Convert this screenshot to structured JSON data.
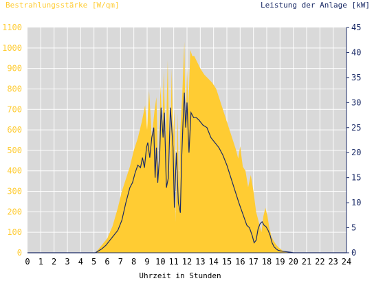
{
  "chart_data": {
    "type": "area",
    "left_axis_label": "Bestrahlungsstärke [W/qm]",
    "right_axis_label": "Leistung der Anlage [kW]",
    "xlabel": "Uhrzeit in Stunden",
    "xlim": [
      0,
      24
    ],
    "ylim_left": [
      0,
      1100
    ],
    "ylim_right": [
      0,
      45
    ],
    "x_ticks": [
      "0",
      "1",
      "2",
      "3",
      "4",
      "5",
      "6",
      "7",
      "8",
      "9",
      "10",
      "11",
      "12",
      "13",
      "14",
      "15",
      "16",
      "17",
      "18",
      "19",
      "20",
      "21",
      "22",
      "23",
      "24"
    ],
    "y_left_ticks": [
      "0",
      "100",
      "200",
      "300",
      "400",
      "500",
      "600",
      "700",
      "800",
      "900",
      "1000",
      "1100"
    ],
    "y_right_ticks": [
      "0",
      "5",
      "10",
      "15",
      "20",
      "25",
      "30",
      "35",
      "40",
      "45"
    ],
    "grid": true,
    "colors": {
      "background": "#d9d9d9",
      "grid": "#ffffff",
      "irradiance_fill": "#ffcc33",
      "power_line": "#1a2a66",
      "left_axis_text": "#ffcc33",
      "right_axis_text": "#1a2a66",
      "axis_text": "#000000"
    },
    "series": [
      {
        "name": "Bestrahlungsstärke [W/qm]",
        "axis": "left",
        "x": [
          0,
          5.1,
          5.5,
          6.0,
          6.4,
          6.8,
          7.1,
          7.4,
          7.7,
          8.0,
          8.3,
          8.6,
          8.85,
          9.0,
          9.15,
          9.35,
          9.55,
          9.7,
          9.85,
          10.0,
          10.15,
          10.25,
          10.4,
          10.55,
          10.7,
          10.85,
          10.95,
          11.05,
          11.15,
          11.3,
          11.4,
          11.5,
          11.65,
          11.8,
          11.9,
          12.0,
          12.1,
          12.25,
          12.4,
          12.55,
          12.7,
          12.85,
          13.0,
          13.3,
          13.6,
          13.9,
          14.2,
          14.5,
          14.8,
          15.1,
          15.4,
          15.7,
          15.85,
          16.0,
          16.2,
          16.4,
          16.6,
          16.8,
          17.0,
          17.2,
          17.4,
          17.6,
          17.75,
          17.9,
          18.05,
          18.2,
          18.35,
          18.5,
          18.7,
          18.9,
          19.2,
          19.5,
          19.8,
          20.0,
          20.3,
          24
        ],
        "y": [
          0,
          0,
          30,
          70,
          130,
          220,
          300,
          360,
          420,
          500,
          560,
          640,
          720,
          600,
          790,
          560,
          690,
          760,
          330,
          820,
          600,
          890,
          500,
          940,
          360,
          900,
          550,
          700,
          150,
          680,
          240,
          600,
          780,
          1030,
          550,
          900,
          700,
          990,
          960,
          960,
          940,
          920,
          900,
          870,
          850,
          830,
          800,
          740,
          680,
          620,
          560,
          500,
          460,
          520,
          420,
          400,
          320,
          380,
          300,
          200,
          150,
          100,
          180,
          220,
          180,
          120,
          80,
          60,
          40,
          25,
          10,
          5,
          2,
          0,
          0,
          0
        ]
      },
      {
        "name": "Leistung der Anlage [kW]",
        "axis": "right",
        "x": [
          0,
          5.1,
          5.3,
          5.6,
          5.9,
          6.2,
          6.5,
          6.8,
          7.1,
          7.4,
          7.7,
          7.9,
          8.1,
          8.3,
          8.5,
          8.65,
          8.8,
          8.95,
          9.05,
          9.2,
          9.35,
          9.5,
          9.6,
          9.7,
          9.8,
          9.95,
          10.05,
          10.2,
          10.3,
          10.45,
          10.6,
          10.75,
          10.85,
          10.95,
          11.05,
          11.2,
          11.35,
          11.5,
          11.6,
          11.7,
          11.8,
          11.9,
          12.0,
          12.15,
          12.3,
          12.5,
          12.7,
          12.9,
          13.2,
          13.5,
          13.8,
          14.1,
          14.4,
          14.7,
          15.0,
          15.3,
          15.6,
          15.9,
          16.1,
          16.3,
          16.5,
          16.7,
          16.9,
          17.05,
          17.2,
          17.35,
          17.5,
          17.65,
          17.8,
          17.95,
          18.1,
          18.25,
          18.4,
          18.55,
          18.7,
          18.85,
          19.0,
          19.2,
          19.5,
          19.8,
          20.0,
          20.2,
          24
        ],
        "y": [
          0,
          0,
          0.3,
          0.8,
          1.5,
          2.5,
          3.5,
          4.5,
          6.5,
          10,
          13,
          14,
          16,
          17.5,
          17,
          19,
          17,
          21,
          22,
          19,
          23,
          25,
          15,
          21,
          14,
          20,
          29,
          23,
          28,
          13,
          15,
          29,
          25,
          21,
          9,
          20,
          10,
          8,
          19,
          26,
          32,
          25,
          30,
          20,
          28,
          27,
          27,
          26.5,
          25.5,
          25,
          23,
          22,
          21,
          19.5,
          17.5,
          15,
          12.5,
          10,
          8.5,
          7,
          5.5,
          5,
          3.5,
          2,
          2.5,
          4.8,
          5.8,
          6.2,
          5.5,
          5.2,
          4.5,
          3.5,
          2,
          1.2,
          0.8,
          0.5,
          0.4,
          0.3,
          0.2,
          0.1,
          0,
          0,
          0
        ]
      }
    ]
  }
}
